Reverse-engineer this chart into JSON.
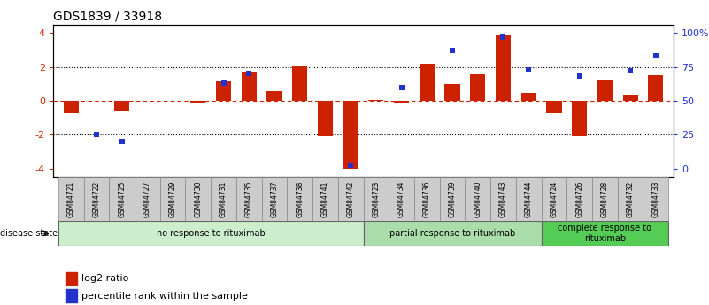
{
  "title": "GDS1839 / 33918",
  "samples": [
    "GSM84721",
    "GSM84722",
    "GSM84725",
    "GSM84727",
    "GSM84729",
    "GSM84730",
    "GSM84731",
    "GSM84735",
    "GSM84737",
    "GSM84738",
    "GSM84741",
    "GSM84742",
    "GSM84723",
    "GSM84734",
    "GSM84736",
    "GSM84739",
    "GSM84740",
    "GSM84743",
    "GSM84744",
    "GSM84724",
    "GSM84726",
    "GSM84728",
    "GSM84732",
    "GSM84733"
  ],
  "log2_ratio": [
    -0.75,
    0.0,
    -0.65,
    0.0,
    0.0,
    -0.15,
    1.15,
    1.65,
    0.55,
    2.05,
    -2.1,
    -4.05,
    0.05,
    -0.15,
    2.2,
    1.0,
    1.55,
    3.85,
    0.45,
    -0.75,
    -2.1,
    1.25,
    0.35,
    1.5
  ],
  "percentile_rank_pct": [
    null,
    25,
    20,
    null,
    null,
    null,
    63,
    70,
    null,
    null,
    null,
    2,
    null,
    60,
    null,
    87,
    null,
    97,
    73,
    null,
    68,
    null,
    72,
    83
  ],
  "groups": [
    {
      "label": "no response to rituximab",
      "start": 0,
      "end": 11,
      "color": "#cceecc"
    },
    {
      "label": "partial response to rituximab",
      "start": 12,
      "end": 18,
      "color": "#aaddaa"
    },
    {
      "label": "complete response to\nrituximab",
      "start": 19,
      "end": 23,
      "color": "#55cc55"
    }
  ],
  "bar_color_red": "#cc2200",
  "bar_color_blue": "#2233cc",
  "yticks_left": [
    -4,
    -2,
    0,
    2,
    4
  ],
  "yticks_right_labels": [
    "0",
    "25",
    "50",
    "75",
    "100%"
  ],
  "ylim": [
    -4.5,
    4.5
  ],
  "legend_red_label": "log2 ratio",
  "legend_blue_label": "percentile rank within the sample",
  "disease_state_label": "disease state"
}
